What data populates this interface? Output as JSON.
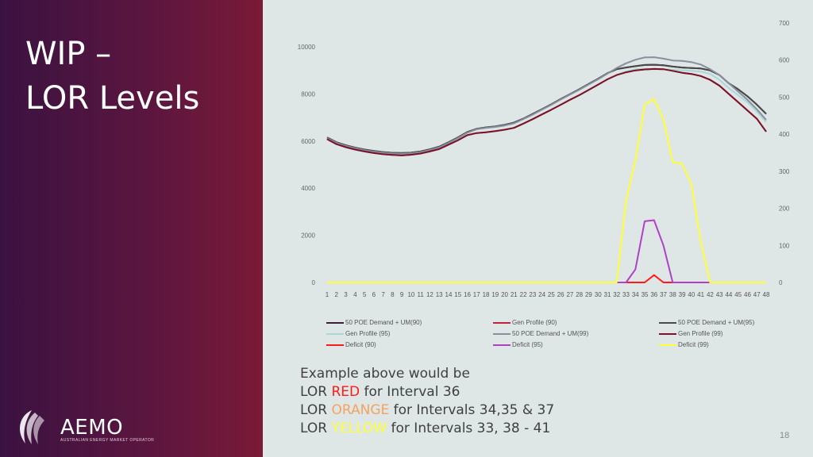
{
  "slide": {
    "title_line1": "WIP –",
    "title_line2": "LOR Levels",
    "page_number": "18"
  },
  "logo": {
    "name": "AEMO",
    "tagline": "AUSTRALIAN ENERGY MARKET OPERATOR"
  },
  "note": {
    "line1": "Example above would be",
    "line2_prefix": "LOR ",
    "line2_level": "RED",
    "line2_suffix": " for Interval 36",
    "line3_prefix": "LOR ",
    "line3_level": "ORANGE",
    "line3_suffix": " for Intervals 34,35 & 37",
    "line4_prefix": "LOR ",
    "line4_level": "YELLOW",
    "line4_suffix": " for Intervals 33, 38 - 41",
    "colors": {
      "red": "#ff1a1a",
      "orange": "#f4a261",
      "yellow": "#ffff33"
    }
  },
  "chart_data": {
    "type": "line",
    "x": [
      1,
      2,
      3,
      4,
      5,
      6,
      7,
      8,
      9,
      10,
      11,
      12,
      13,
      14,
      15,
      16,
      17,
      18,
      19,
      20,
      21,
      22,
      23,
      24,
      25,
      26,
      27,
      28,
      29,
      30,
      31,
      32,
      33,
      34,
      35,
      36,
      37,
      38,
      39,
      40,
      41,
      42,
      43,
      44,
      45,
      46,
      47,
      48
    ],
    "ylim": [
      0,
      10000
    ],
    "y2lim": [
      0,
      700
    ],
    "y_ticks": [
      "0",
      "2000",
      "4000",
      "6000",
      "8000",
      "10000"
    ],
    "y2_ticks": [
      "0",
      "100",
      "200",
      "300",
      "400",
      "500",
      "600",
      "700"
    ],
    "legend_position": "bottom",
    "series": [
      {
        "name": "50 POE Demand + UM(90)",
        "color": "#3d1f3a",
        "axis": "left",
        "values": [
          6150,
          5950,
          5820,
          5720,
          5640,
          5580,
          5530,
          5500,
          5490,
          5510,
          5560,
          5650,
          5760,
          5950,
          6150,
          6380,
          6520,
          6580,
          6620,
          6690,
          6780,
          6950,
          7150,
          7350,
          7560,
          7780,
          7990,
          8200,
          8420,
          8640,
          8880,
          9050,
          9120,
          9180,
          9230,
          9240,
          9220,
          9160,
          9120,
          9100,
          9080,
          9000,
          8800,
          8450,
          8200,
          7900,
          7550,
          7150
        ]
      },
      {
        "name": "Gen Profile (90)",
        "color": "#c0223b",
        "axis": "left",
        "values": [
          6080,
          5870,
          5740,
          5640,
          5560,
          5490,
          5440,
          5410,
          5390,
          5420,
          5470,
          5560,
          5660,
          5850,
          6030,
          6250,
          6340,
          6370,
          6420,
          6480,
          6560,
          6740,
          6930,
          7130,
          7330,
          7540,
          7750,
          7950,
          8170,
          8390,
          8620,
          8800,
          8920,
          9000,
          9040,
          9060,
          9050,
          8980,
          8900,
          8850,
          8760,
          8600,
          8350,
          8000,
          7650,
          7300,
          6950,
          6400
        ]
      },
      {
        "name": "50 POE Demand + UM(95)",
        "color": "#4a4a4a",
        "axis": "left",
        "values": [
          6150,
          5950,
          5820,
          5720,
          5640,
          5580,
          5530,
          5500,
          5490,
          5510,
          5560,
          5650,
          5760,
          5950,
          6150,
          6380,
          6520,
          6580,
          6620,
          6690,
          6780,
          6950,
          7150,
          7350,
          7560,
          7780,
          7990,
          8200,
          8420,
          8640,
          8880,
          9050,
          9120,
          9180,
          9230,
          9240,
          9220,
          9160,
          9120,
          9100,
          9080,
          9000,
          8800,
          8450,
          8200,
          7900,
          7550,
          7150
        ]
      },
      {
        "name": "Gen Profile (95)",
        "color": "#a8d8d8",
        "axis": "left",
        "values": [
          6080,
          5870,
          5740,
          5640,
          5560,
          5490,
          5440,
          5410,
          5390,
          5420,
          5470,
          5560,
          5660,
          5850,
          6030,
          6250,
          6340,
          6370,
          6420,
          6480,
          6560,
          6740,
          6930,
          7130,
          7330,
          7540,
          7750,
          7950,
          8170,
          8390,
          8620,
          8800,
          8950,
          9050,
          9060,
          9050,
          9050,
          9030,
          9000,
          8980,
          8950,
          8850,
          8600,
          8250,
          7950,
          7650,
          7250,
          6800
        ]
      },
      {
        "name": "50 POE Demand + UM(99)",
        "color": "#8a8f9e",
        "axis": "left",
        "values": [
          6120,
          5920,
          5790,
          5690,
          5610,
          5550,
          5500,
          5470,
          5460,
          5480,
          5530,
          5620,
          5730,
          5920,
          6120,
          6350,
          6500,
          6560,
          6600,
          6660,
          6750,
          6930,
          7120,
          7330,
          7540,
          7760,
          7970,
          8180,
          8400,
          8620,
          8860,
          9100,
          9300,
          9450,
          9550,
          9560,
          9500,
          9420,
          9400,
          9350,
          9250,
          9050,
          8800,
          8450,
          8100,
          7750,
          7350,
          6900
        ]
      },
      {
        "name": "Gen Profile (99)",
        "color": "#7a1228",
        "axis": "left",
        "values": [
          6080,
          5870,
          5740,
          5640,
          5560,
          5490,
          5440,
          5410,
          5390,
          5420,
          5470,
          5560,
          5660,
          5850,
          6030,
          6250,
          6340,
          6370,
          6420,
          6480,
          6560,
          6740,
          6930,
          7130,
          7330,
          7540,
          7750,
          7950,
          8170,
          8390,
          8620,
          8800,
          8920,
          9000,
          9040,
          9060,
          9050,
          8980,
          8900,
          8850,
          8760,
          8600,
          8350,
          8000,
          7650,
          7300,
          6950,
          6400
        ]
      },
      {
        "name": "Deficit (90)",
        "color": "#ff1a1a",
        "axis": "right",
        "values": [
          0,
          0,
          0,
          0,
          0,
          0,
          0,
          0,
          0,
          0,
          0,
          0,
          0,
          0,
          0,
          0,
          0,
          0,
          0,
          0,
          0,
          0,
          0,
          0,
          0,
          0,
          0,
          0,
          0,
          0,
          0,
          0,
          0,
          0,
          0,
          20,
          0,
          0,
          0,
          0,
          0,
          0,
          0,
          0,
          0,
          0,
          0,
          0
        ]
      },
      {
        "name": "Deficit (95)",
        "color": "#b040c8",
        "axis": "right",
        "values": [
          0,
          0,
          0,
          0,
          0,
          0,
          0,
          0,
          0,
          0,
          0,
          0,
          0,
          0,
          0,
          0,
          0,
          0,
          0,
          0,
          0,
          0,
          0,
          0,
          0,
          0,
          0,
          0,
          0,
          0,
          0,
          0,
          0,
          35,
          165,
          168,
          100,
          0,
          0,
          0,
          0,
          0,
          0,
          0,
          0,
          0,
          0,
          0
        ]
      },
      {
        "name": "Deficit (99)",
        "color": "#ffff33",
        "axis": "right",
        "values": [
          0,
          0,
          0,
          0,
          0,
          0,
          0,
          0,
          0,
          0,
          0,
          0,
          0,
          0,
          0,
          0,
          0,
          0,
          0,
          0,
          0,
          0,
          0,
          0,
          0,
          0,
          0,
          0,
          0,
          0,
          0,
          0,
          220,
          330,
          480,
          495,
          440,
          325,
          320,
          265,
          110,
          0,
          0,
          0,
          0,
          0,
          0,
          0
        ]
      }
    ]
  }
}
